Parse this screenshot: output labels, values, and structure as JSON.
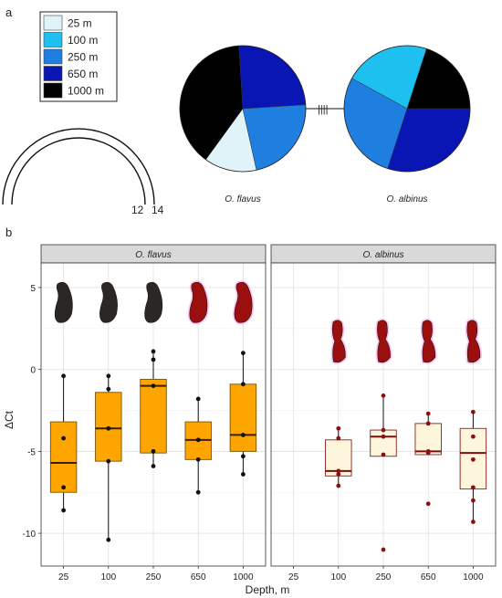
{
  "panels": {
    "a": "a",
    "b": "b"
  },
  "legend": [
    {
      "label": "25 m",
      "color": "#e0f3f8"
    },
    {
      "label": "100 m",
      "color": "#1ec0f0"
    },
    {
      "label": "250 m",
      "color": "#1f7fe0"
    },
    {
      "label": "650 m",
      "color": "#0a16b4"
    },
    {
      "label": "1000 m",
      "color": "#000000"
    }
  ],
  "tree_tips": [
    "12",
    "14"
  ],
  "pie_link_symbol": "||||",
  "chart_data": [
    {
      "type": "pie",
      "name": "O. flavus",
      "slices": [
        {
          "depth": "25 m",
          "value": 13.5
        },
        {
          "depth": "100 m",
          "value": 0
        },
        {
          "depth": "250 m",
          "value": 22.5
        },
        {
          "depth": "650 m",
          "value": 25
        },
        {
          "depth": "1000 m",
          "value": 39
        }
      ]
    },
    {
      "type": "pie",
      "name": "O. albinus",
      "slices": [
        {
          "depth": "25 m",
          "value": 0
        },
        {
          "depth": "100 m",
          "value": 22
        },
        {
          "depth": "250 m",
          "value": 28
        },
        {
          "depth": "650 m",
          "value": 30
        },
        {
          "depth": "1000 m",
          "value": 20
        }
      ]
    },
    {
      "type": "box",
      "xlabel": "Depth, m",
      "ylabel": "ΔCt",
      "ylim": [
        -12,
        6.5
      ],
      "yticks": [
        5,
        0,
        -5,
        -10
      ],
      "categories": [
        "25",
        "100",
        "250",
        "650",
        "1000"
      ],
      "facets": [
        {
          "name": "O. flavus",
          "box_fill": "#ffa500",
          "box_stroke": "#7a5200",
          "point_color": "#111111",
          "boxes": [
            {
              "category": "25",
              "q1": -7.5,
              "median": -5.7,
              "q3": -3.2,
              "whisker_low": -8.6,
              "whisker_high": -0.4,
              "points": [
                -8.6,
                -7.2,
                -4.2,
                -0.4
              ]
            },
            {
              "category": "100",
              "q1": -5.6,
              "median": -3.6,
              "q3": -1.4,
              "whisker_low": -10.4,
              "whisker_high": -0.4,
              "points": [
                -10.4,
                -5.6,
                -3.6,
                -1.2,
                -0.4
              ]
            },
            {
              "category": "250",
              "q1": -5.1,
              "median": -1.0,
              "q3": -0.6,
              "whisker_low": -5.9,
              "whisker_high": 1.1,
              "points": [
                -5.9,
                -5.0,
                -1.0,
                0.6,
                1.1
              ]
            },
            {
              "category": "650",
              "q1": -5.5,
              "median": -4.3,
              "q3": -3.2,
              "whisker_low": -7.5,
              "whisker_high": -1.8,
              "points": [
                -7.5,
                -5.5,
                -4.3,
                -1.8
              ]
            },
            {
              "category": "1000",
              "q1": -5.0,
              "median": -4.0,
              "q3": -0.9,
              "whisker_low": -6.4,
              "whisker_high": 1.0,
              "points": [
                -6.4,
                -5.3,
                -4.0,
                -0.9,
                1.0
              ]
            }
          ],
          "phenotype_icons": [
            {
              "category": "25",
              "color": "#2b2725"
            },
            {
              "category": "100",
              "color": "#2b2725"
            },
            {
              "category": "250",
              "color": "#2b2725"
            },
            {
              "category": "650",
              "color": "#9b0f0f"
            },
            {
              "category": "1000",
              "color": "#9b0f0f"
            }
          ]
        },
        {
          "name": "O. albinus",
          "box_fill": "#fdf6dc",
          "box_stroke": "#8b1e1e",
          "point_color": "#8b1010",
          "boxes": [
            {
              "category": "100",
              "q1": -6.5,
              "median": -6.2,
              "q3": -4.3,
              "whisker_low": -7.1,
              "whisker_high": -3.6,
              "points": [
                -7.1,
                -6.4,
                -6.2,
                -4.2,
                -3.6
              ]
            },
            {
              "category": "250",
              "q1": -5.3,
              "median": -4.1,
              "q3": -3.7,
              "whisker_low": -5.3,
              "whisker_high": -1.6,
              "points": [
                -11.0,
                -5.2,
                -4.1,
                -3.7,
                -1.6
              ]
            },
            {
              "category": "650",
              "q1": -5.2,
              "median": -5.0,
              "q3": -3.3,
              "whisker_low": -5.2,
              "whisker_high": -2.7,
              "points": [
                -8.2,
                -5.1,
                -5.0,
                -3.3,
                -2.7
              ]
            },
            {
              "category": "1000",
              "q1": -7.3,
              "median": -5.1,
              "q3": -3.6,
              "whisker_low": -9.3,
              "whisker_high": -2.6,
              "points": [
                -9.3,
                -8.0,
                -7.2,
                -5.5,
                -4.1,
                -2.6
              ]
            }
          ],
          "phenotype_icons": [
            {
              "category": "100",
              "color": "#9b0f0f"
            },
            {
              "category": "250",
              "color": "#9b0f0f"
            },
            {
              "category": "650",
              "color": "#9b0f0f"
            },
            {
              "category": "1000",
              "color": "#9b0f0f"
            }
          ]
        }
      ]
    }
  ]
}
